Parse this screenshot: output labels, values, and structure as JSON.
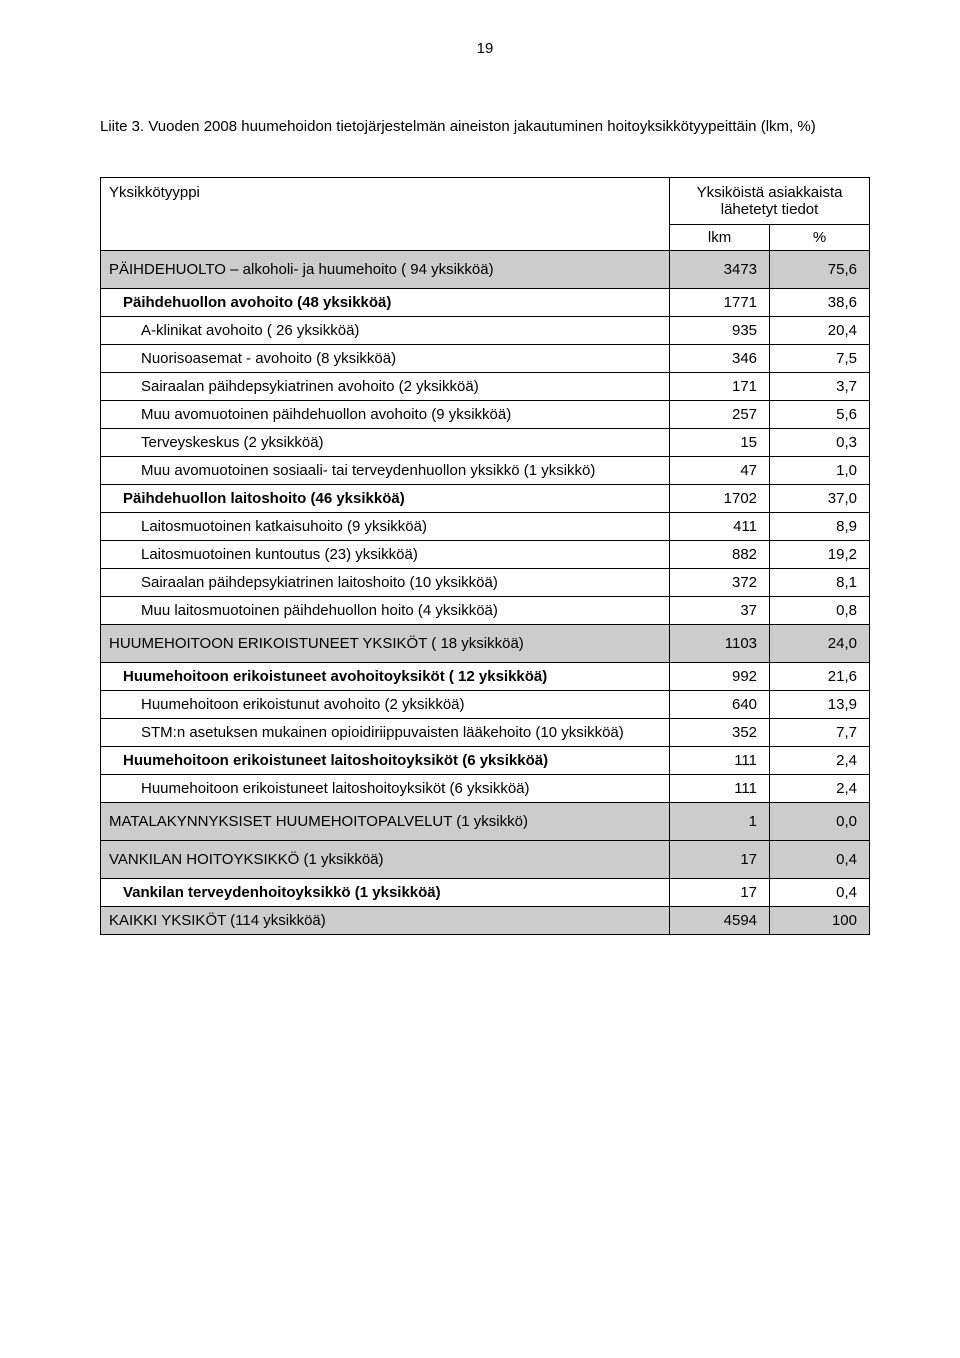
{
  "pageNumber": "19",
  "title": "Liite 3. Vuoden 2008 huumehoidon tietojärjestelmän aineiston jakautuminen hoitoyksikkötyypeittäin (lkm, %)",
  "header": {
    "unitTypeLabel": "Yksikkötyyppi",
    "groupLabel": "Yksiköistä asiakkaista lähetetyt tiedot",
    "col_lkm": "lkm",
    "col_pct": "%"
  },
  "rows": [
    {
      "label": "PÄIHDEHUOLTO – alkoholi- ja huumehoito ( 94 yksikköä)",
      "lkm": "3473",
      "pct": "75,6",
      "shaded": true,
      "section": true
    },
    {
      "label": "Päihdehuollon avohoito (48 yksikköä)",
      "lkm": "1771",
      "pct": "38,6",
      "bold": true,
      "indent": 1
    },
    {
      "label": "A-klinikat avohoito ( 26 yksikköä)",
      "lkm": "935",
      "pct": "20,4",
      "indent": 2
    },
    {
      "label": "Nuorisoasemat - avohoito (8  yksikköä)",
      "lkm": "346",
      "pct": "7,5",
      "indent": 2
    },
    {
      "label": "Sairaalan päihdepsykiatrinen avohoito (2  yksikköä)",
      "lkm": "171",
      "pct": "3,7",
      "indent": 2
    },
    {
      "label": "Muu avomuotoinen päihdehuollon avohoito (9  yksikköä)",
      "lkm": "257",
      "pct": "5,6",
      "indent": 2
    },
    {
      "label": "Terveyskeskus (2 yksikköä)",
      "lkm": "15",
      "pct": "0,3",
      "indent": 2
    },
    {
      "label": "Muu avomuotoinen sosiaali- tai terveydenhuollon yksikkö (1 yksikkö)",
      "lkm": "47",
      "pct": "1,0",
      "indent": 2
    },
    {
      "label": "Päihdehuollon laitoshoito (46 yksikköä)",
      "lkm": "1702",
      "pct": "37,0",
      "bold": true,
      "indent": 1
    },
    {
      "label": "Laitosmuotoinen katkaisuhoito (9  yksikköä)",
      "lkm": "411",
      "pct": "8,9",
      "indent": 2
    },
    {
      "label": "Laitosmuotoinen kuntoutus (23)  yksikköä)",
      "lkm": "882",
      "pct": "19,2",
      "indent": 2
    },
    {
      "label": "Sairaalan päihdepsykiatrinen laitoshoito (10  yksikköä)",
      "lkm": "372",
      "pct": "8,1",
      "indent": 2
    },
    {
      "label": "Muu laitosmuotoinen päihdehuollon hoito (4 yksikköä)",
      "lkm": "37",
      "pct": "0,8",
      "indent": 2
    },
    {
      "label": "HUUMEHOITOON ERIKOISTUNEET YKSIKÖT ( 18 yksikköä)",
      "lkm": "1103",
      "pct": "24,0",
      "shaded": true,
      "section": true
    },
    {
      "label": "Huumehoitoon erikoistuneet avohoitoyksiköt  ( 12 yksikköä)",
      "lkm": "992",
      "pct": "21,6",
      "bold": true,
      "indent": 1
    },
    {
      "label": "Huumehoitoon erikoistunut avohoito (2 yksikköä)",
      "lkm": "640",
      "pct": "13,9",
      "indent": 2
    },
    {
      "label": "STM:n asetuksen mukainen opioidiriippuvaisten lääkehoito (10 yksikköä)",
      "lkm": "352",
      "pct": "7,7",
      "indent": 2
    },
    {
      "label": "Huumehoitoon erikoistuneet laitoshoitoyksiköt  (6 yksikköä)",
      "lkm": "111",
      "pct": "2,4",
      "bold": true,
      "indent": 1
    },
    {
      "label": "Huumehoitoon erikoistuneet laitoshoitoyksiköt (6 yksikköä)",
      "lkm": "111",
      "pct": "2,4",
      "indent": 2
    },
    {
      "label": "MATALAKYNNYKSISET HUUMEHOITOPALVELUT (1 yksikkö)",
      "lkm": "1",
      "pct": "0,0",
      "shaded": true,
      "section": true
    },
    {
      "label": "VANKILAN HOITOYKSIKKÖ (1 yksikköä)",
      "lkm": "17",
      "pct": "0,4",
      "shaded": true,
      "section": true
    },
    {
      "label": "Vankilan terveydenhoitoyksikkö (1 yksikköä)",
      "lkm": "17",
      "pct": "0,4",
      "bold": true,
      "indent": 1
    },
    {
      "label": "KAIKKI YKSIKÖT (114 yksikköä)",
      "lkm": "4594",
      "pct": "100",
      "shaded": true
    }
  ]
}
